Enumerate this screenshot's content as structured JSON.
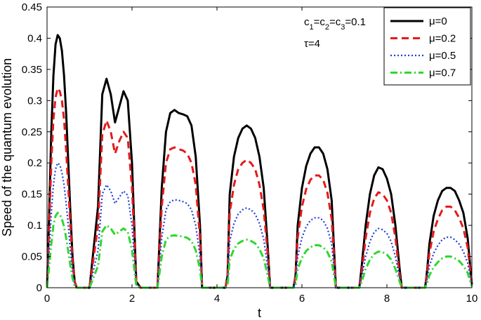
{
  "chart_data": {
    "type": "line",
    "xlabel": "t",
    "ylabel": "Speed of the quantum evolution",
    "xlim": [
      0,
      10
    ],
    "ylim": [
      0,
      0.45
    ],
    "xticks": [
      0,
      2,
      4,
      6,
      8,
      10
    ],
    "xtick_labels": [
      "0",
      "2",
      "4",
      "6",
      "8",
      "10"
    ],
    "yticks": [
      0,
      0.05,
      0.1,
      0.15,
      0.2,
      0.25,
      0.3,
      0.35,
      0.4,
      0.45
    ],
    "ytick_labels": [
      "0",
      "0.05",
      "0.1",
      "0.15",
      "0.2",
      "0.25",
      "0.3",
      "0.35",
      "0.4",
      "0.45"
    ],
    "grid": false,
    "legend_position": "top-right",
    "annotations": {
      "params": "c1=c2=c3=0.1",
      "tau": "τ=4"
    },
    "series": [
      {
        "name": "μ=0",
        "color": "#000000",
        "style": "solid",
        "x": [
          0,
          0.05,
          0.1,
          0.15,
          0.2,
          0.25,
          0.3,
          0.35,
          0.4,
          0.45,
          0.5,
          0.55,
          0.6,
          0.65,
          0.7,
          0.75,
          0.8,
          0.85,
          1.0,
          1.2,
          1.3,
          1.4,
          1.5,
          1.6,
          1.7,
          1.8,
          1.9,
          2.0,
          2.1,
          2.2,
          2.6,
          2.7,
          2.8,
          2.9,
          3.0,
          3.1,
          3.2,
          3.3,
          3.4,
          3.5,
          3.6,
          3.65,
          4.2,
          4.25,
          4.3,
          4.4,
          4.5,
          4.6,
          4.7,
          4.8,
          4.9,
          5.0,
          5.1,
          5.2,
          5.25,
          5.8,
          5.85,
          5.9,
          6.0,
          6.1,
          6.2,
          6.3,
          6.4,
          6.5,
          6.6,
          6.7,
          6.8,
          7.35,
          7.4,
          7.5,
          7.6,
          7.7,
          7.8,
          7.9,
          8.0,
          8.1,
          8.2,
          8.3,
          8.35,
          8.9,
          8.95,
          9.0,
          9.1,
          9.2,
          9.3,
          9.4,
          9.5,
          9.6,
          9.7,
          9.8,
          9.9,
          10.0
        ],
        "values": [
          0,
          0.12,
          0.25,
          0.34,
          0.39,
          0.405,
          0.4,
          0.38,
          0.34,
          0.28,
          0.2,
          0.12,
          0.05,
          0.01,
          0,
          0,
          0,
          0,
          0,
          0.13,
          0.31,
          0.335,
          0.31,
          0.265,
          0.29,
          0.315,
          0.3,
          0.2,
          0.01,
          0,
          0,
          0.16,
          0.25,
          0.28,
          0.285,
          0.28,
          0.278,
          0.275,
          0.26,
          0.21,
          0.1,
          0,
          0,
          0.02,
          0.15,
          0.21,
          0.24,
          0.255,
          0.26,
          0.255,
          0.24,
          0.21,
          0.16,
          0.06,
          0,
          0,
          0.02,
          0.1,
          0.16,
          0.195,
          0.215,
          0.225,
          0.225,
          0.215,
          0.19,
          0.14,
          0,
          0,
          0.03,
          0.1,
          0.15,
          0.18,
          0.193,
          0.19,
          0.175,
          0.15,
          0.1,
          0.03,
          0,
          0,
          0.03,
          0.07,
          0.115,
          0.14,
          0.155,
          0.16,
          0.16,
          0.155,
          0.14,
          0.12,
          0.08,
          0.005
        ]
      },
      {
        "name": "μ=0.2",
        "color": "#e41a1c",
        "style": "dashed",
        "x": [
          0,
          0.05,
          0.1,
          0.15,
          0.2,
          0.25,
          0.3,
          0.35,
          0.4,
          0.45,
          0.5,
          0.55,
          0.6,
          0.65,
          0.7,
          0.75,
          1.0,
          1.2,
          1.3,
          1.4,
          1.5,
          1.6,
          1.7,
          1.8,
          1.9,
          2.0,
          2.1,
          2.2,
          2.6,
          2.7,
          2.8,
          2.9,
          3.0,
          3.1,
          3.2,
          3.3,
          3.4,
          3.5,
          3.6,
          3.65,
          4.2,
          4.25,
          4.3,
          4.4,
          4.5,
          4.6,
          4.7,
          4.8,
          4.9,
          5.0,
          5.1,
          5.2,
          5.25,
          5.8,
          5.85,
          5.9,
          6.0,
          6.1,
          6.2,
          6.3,
          6.4,
          6.5,
          6.6,
          6.7,
          6.8,
          7.35,
          7.4,
          7.5,
          7.6,
          7.7,
          7.8,
          7.9,
          8.0,
          8.1,
          8.2,
          8.3,
          8.35,
          8.9,
          8.95,
          9.0,
          9.1,
          9.2,
          9.3,
          9.4,
          9.5,
          9.6,
          9.7,
          9.8,
          9.9,
          10.0
        ],
        "values": [
          0,
          0.1,
          0.2,
          0.27,
          0.305,
          0.32,
          0.315,
          0.3,
          0.27,
          0.22,
          0.16,
          0.1,
          0.04,
          0.01,
          0,
          0,
          0,
          0.1,
          0.245,
          0.268,
          0.25,
          0.215,
          0.235,
          0.25,
          0.24,
          0.16,
          0.01,
          0,
          0,
          0.13,
          0.2,
          0.222,
          0.225,
          0.222,
          0.22,
          0.215,
          0.2,
          0.165,
          0.08,
          0,
          0,
          0.02,
          0.12,
          0.165,
          0.19,
          0.2,
          0.205,
          0.2,
          0.19,
          0.165,
          0.125,
          0.05,
          0,
          0,
          0.02,
          0.08,
          0.13,
          0.158,
          0.173,
          0.18,
          0.18,
          0.173,
          0.152,
          0.11,
          0,
          0,
          0.02,
          0.08,
          0.12,
          0.143,
          0.153,
          0.15,
          0.14,
          0.12,
          0.08,
          0.02,
          0,
          0,
          0.025,
          0.055,
          0.09,
          0.11,
          0.124,
          0.13,
          0.13,
          0.124,
          0.112,
          0.095,
          0.065,
          0.005
        ]
      },
      {
        "name": "μ=0.5",
        "color": "#1f3fd6",
        "style": "dotted",
        "x": [
          0,
          0.05,
          0.1,
          0.15,
          0.2,
          0.25,
          0.3,
          0.35,
          0.4,
          0.45,
          0.5,
          0.55,
          0.6,
          0.65,
          0.7,
          0.75,
          1.0,
          1.2,
          1.3,
          1.4,
          1.5,
          1.6,
          1.7,
          1.8,
          1.9,
          2.0,
          2.1,
          2.2,
          2.6,
          2.7,
          2.8,
          2.9,
          3.0,
          3.1,
          3.2,
          3.3,
          3.4,
          3.5,
          3.6,
          3.65,
          4.2,
          4.25,
          4.3,
          4.4,
          4.5,
          4.6,
          4.7,
          4.8,
          4.9,
          5.0,
          5.1,
          5.2,
          5.25,
          5.8,
          5.85,
          5.9,
          6.0,
          6.1,
          6.2,
          6.3,
          6.4,
          6.5,
          6.6,
          6.7,
          6.8,
          7.35,
          7.4,
          7.5,
          7.6,
          7.7,
          7.8,
          7.9,
          8.0,
          8.1,
          8.2,
          8.3,
          8.35,
          8.9,
          8.95,
          9.0,
          9.1,
          9.2,
          9.3,
          9.4,
          9.5,
          9.6,
          9.7,
          9.8,
          9.9,
          10.0
        ],
        "values": [
          0,
          0.06,
          0.12,
          0.165,
          0.19,
          0.2,
          0.197,
          0.185,
          0.165,
          0.135,
          0.1,
          0.06,
          0.025,
          0.005,
          0,
          0,
          0,
          0.06,
          0.15,
          0.165,
          0.155,
          0.135,
          0.145,
          0.155,
          0.148,
          0.1,
          0.005,
          0,
          0,
          0.08,
          0.125,
          0.138,
          0.141,
          0.14,
          0.138,
          0.135,
          0.125,
          0.1,
          0.05,
          0,
          0,
          0.01,
          0.075,
          0.103,
          0.118,
          0.125,
          0.128,
          0.125,
          0.118,
          0.103,
          0.078,
          0.03,
          0,
          0,
          0.01,
          0.05,
          0.08,
          0.098,
          0.108,
          0.112,
          0.112,
          0.108,
          0.095,
          0.07,
          0,
          0,
          0.015,
          0.05,
          0.074,
          0.089,
          0.095,
          0.093,
          0.087,
          0.074,
          0.05,
          0.015,
          0,
          0,
          0.015,
          0.035,
          0.055,
          0.068,
          0.077,
          0.081,
          0.081,
          0.077,
          0.07,
          0.058,
          0.04,
          0.003
        ]
      },
      {
        "name": "μ=0.7",
        "color": "#2fd62f",
        "style": "dashdot",
        "x": [
          0,
          0.05,
          0.1,
          0.15,
          0.2,
          0.25,
          0.3,
          0.35,
          0.4,
          0.45,
          0.5,
          0.55,
          0.6,
          0.65,
          0.7,
          0.75,
          1.0,
          1.2,
          1.3,
          1.4,
          1.5,
          1.6,
          1.7,
          1.8,
          1.9,
          2.0,
          2.1,
          2.2,
          2.6,
          2.7,
          2.8,
          2.9,
          3.0,
          3.1,
          3.2,
          3.3,
          3.4,
          3.5,
          3.6,
          3.65,
          4.2,
          4.25,
          4.3,
          4.4,
          4.5,
          4.6,
          4.7,
          4.8,
          4.9,
          5.0,
          5.1,
          5.2,
          5.25,
          5.8,
          5.85,
          5.9,
          6.0,
          6.1,
          6.2,
          6.3,
          6.4,
          6.5,
          6.6,
          6.7,
          6.8,
          7.35,
          7.4,
          7.5,
          7.6,
          7.7,
          7.8,
          7.9,
          8.0,
          8.1,
          8.2,
          8.3,
          8.35,
          8.9,
          8.95,
          9.0,
          9.1,
          9.2,
          9.3,
          9.4,
          9.5,
          9.6,
          9.7,
          9.8,
          9.9,
          10.0
        ],
        "values": [
          0,
          0.035,
          0.07,
          0.1,
          0.115,
          0.12,
          0.118,
          0.11,
          0.098,
          0.08,
          0.058,
          0.035,
          0.015,
          0.003,
          0,
          0,
          0,
          0.035,
          0.09,
          0.1,
          0.095,
          0.085,
          0.09,
          0.095,
          0.09,
          0.06,
          0.003,
          0,
          0,
          0.05,
          0.077,
          0.083,
          0.084,
          0.083,
          0.082,
          0.08,
          0.075,
          0.06,
          0.03,
          0,
          0,
          0.005,
          0.045,
          0.062,
          0.071,
          0.075,
          0.077,
          0.075,
          0.071,
          0.062,
          0.047,
          0.018,
          0,
          0,
          0.005,
          0.03,
          0.048,
          0.059,
          0.065,
          0.068,
          0.068,
          0.065,
          0.057,
          0.042,
          0,
          0,
          0.008,
          0.03,
          0.045,
          0.054,
          0.058,
          0.057,
          0.053,
          0.045,
          0.03,
          0.01,
          0,
          0,
          0.008,
          0.02,
          0.033,
          0.041,
          0.047,
          0.05,
          0.05,
          0.047,
          0.043,
          0.035,
          0.024,
          0.002
        ]
      }
    ]
  }
}
